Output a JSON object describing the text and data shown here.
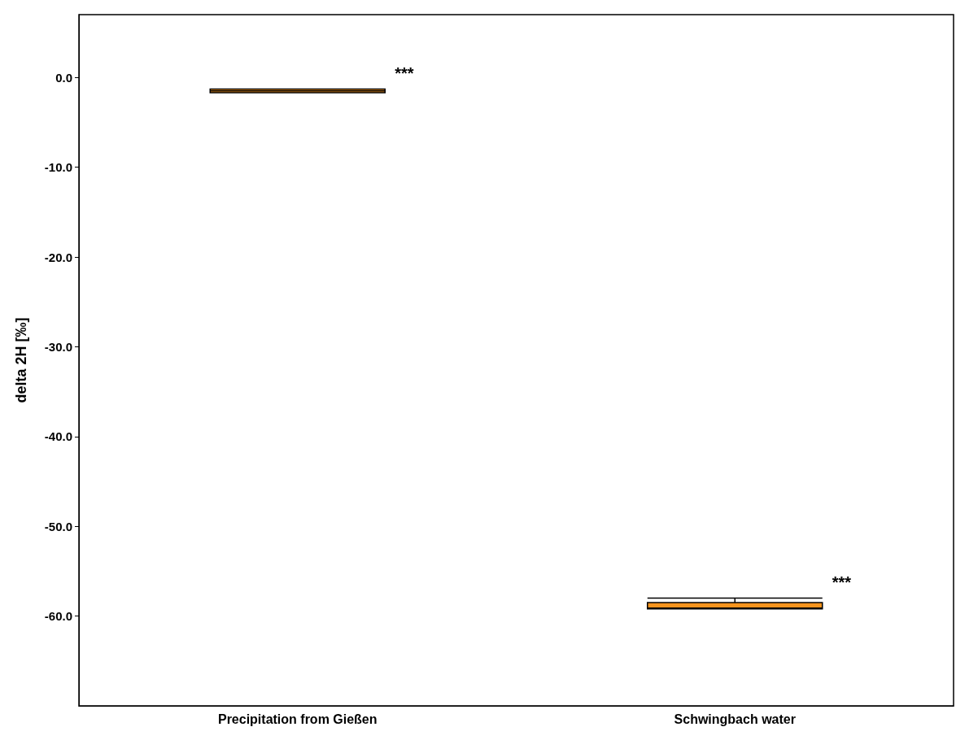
{
  "chart_data": {
    "type": "box",
    "ylabel": "delta 2H [‰]",
    "categories": [
      "Precipitation from Gießen",
      "Schwingbach water"
    ],
    "boxes": [
      {
        "low": -1.7,
        "q1": -1.7,
        "median": -1.5,
        "q3": -1.3,
        "high": -1.3
      },
      {
        "low": -59.2,
        "q1": -59.2,
        "median": -59.1,
        "q3": -58.5,
        "high": -58.0
      }
    ],
    "color": "#f7941d",
    "ylim": [
      -70,
      7
    ],
    "yticks": [
      {
        "value": 0,
        "label": "0.0"
      },
      {
        "value": -10,
        "label": "-10.0"
      },
      {
        "value": -20,
        "label": "-20.0"
      },
      {
        "value": -30,
        "label": "-30.0"
      },
      {
        "value": -40,
        "label": "-40.0"
      },
      {
        "value": -50,
        "label": "-50.0"
      },
      {
        "value": -60,
        "label": "-60.0"
      }
    ],
    "grid": false,
    "annotations": [
      "***",
      "***"
    ]
  }
}
